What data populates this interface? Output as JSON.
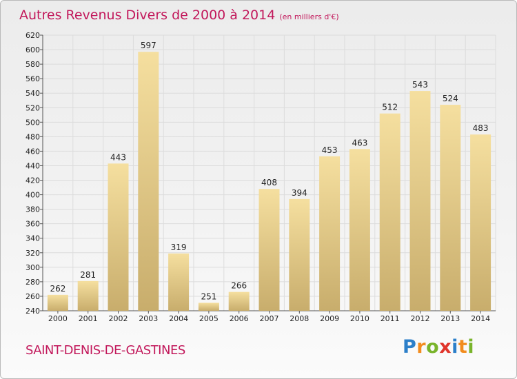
{
  "chart_data": {
    "type": "bar",
    "title": "Autres Revenus Divers de 2000 à 2014",
    "subtitle": "(en milliers d'€)",
    "xlabel": "",
    "ylabel": "",
    "categories": [
      "2000",
      "2001",
      "2002",
      "2003",
      "2004",
      "2005",
      "2006",
      "2007",
      "2008",
      "2009",
      "2010",
      "2011",
      "2012",
      "2013",
      "2014"
    ],
    "values": [
      262,
      281,
      443,
      597,
      319,
      251,
      266,
      408,
      394,
      453,
      463,
      512,
      543,
      524,
      483
    ],
    "ylim": [
      240,
      620
    ],
    "yticks": [
      240,
      260,
      280,
      300,
      320,
      340,
      360,
      380,
      400,
      420,
      440,
      460,
      480,
      500,
      520,
      540,
      560,
      580,
      600,
      620
    ],
    "grid": true,
    "legend": "none",
    "bar_color_light": "#f5df9f",
    "bar_color_dark": "#c8ad6c",
    "title_color": "#c2185b"
  },
  "footer": {
    "commune": "SAINT-DENIS-DE-GASTINES"
  },
  "logo": {
    "letters": [
      "P",
      "r",
      "o",
      "x",
      "i",
      "t",
      "i"
    ]
  }
}
